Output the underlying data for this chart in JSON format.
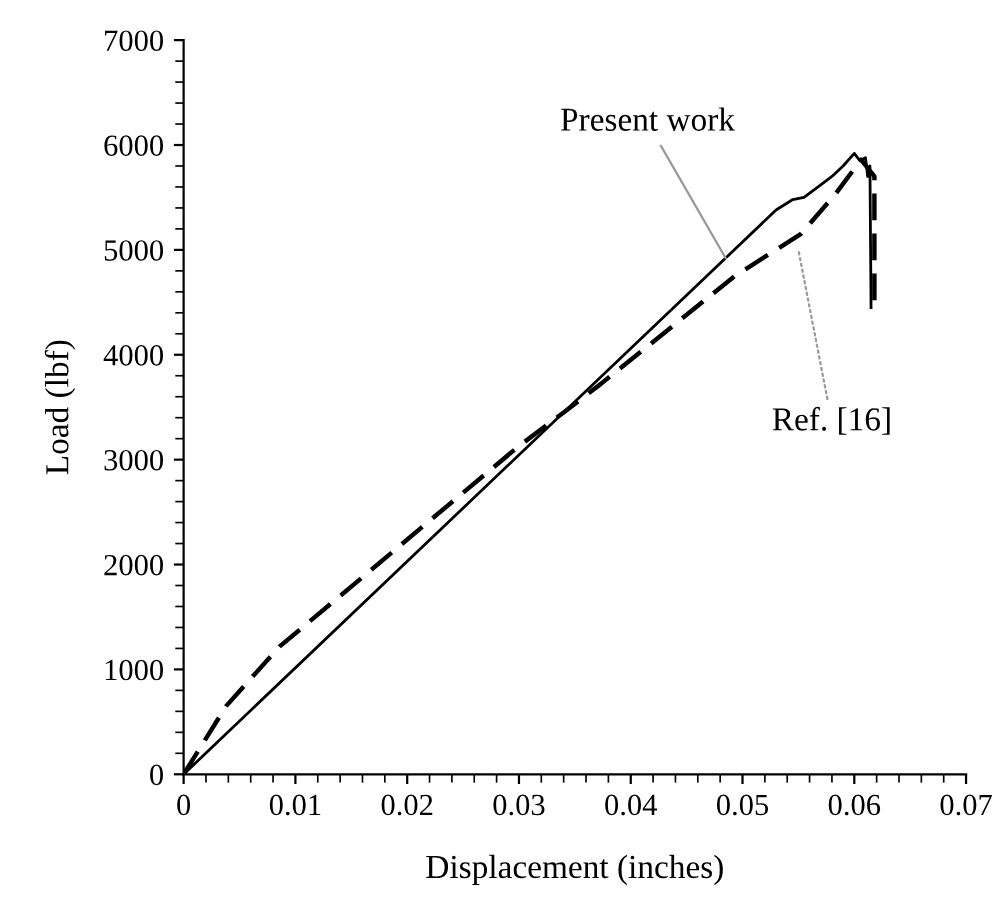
{
  "chart_data": {
    "type": "line",
    "xlabel": "Displacement (inches)",
    "ylabel": "Load (lbf)",
    "xlim": [
      0,
      0.07
    ],
    "ylim": [
      0,
      7000
    ],
    "xticks": [
      0,
      0.01,
      0.02,
      0.03,
      0.04,
      0.05,
      0.06,
      0.07
    ],
    "yticks": [
      0,
      1000,
      2000,
      3000,
      4000,
      5000,
      6000,
      7000
    ],
    "grid": false,
    "legend": false,
    "series": [
      {
        "color": "#000000",
        "line_style": "solid",
        "x": [
          0,
          0.053,
          0.0545,
          0.0555,
          0.057,
          0.058,
          0.059,
          0.06,
          0.0605,
          0.061,
          0.0612,
          0.0614,
          0.0615
        ],
        "values": [
          0,
          5380,
          5480,
          5500,
          5620,
          5700,
          5800,
          5920,
          5850,
          5880,
          5700,
          5800,
          4450
        ]
      },
      {
        "color": "#000000",
        "line_style": "dashed",
        "x": [
          0,
          0.0038,
          0.0086,
          0.014,
          0.0217,
          0.03,
          0.034,
          0.0373,
          0.0493,
          0.0552,
          0.0583,
          0.0606,
          0.0618,
          0.0618
        ],
        "values": [
          0,
          650,
          1220,
          1700,
          2390,
          3130,
          3450,
          3720,
          4750,
          5150,
          5530,
          5860,
          5700,
          4430
        ]
      }
    ],
    "annotations": [
      {
        "text": "Present work",
        "x": 0.0485,
        "y": 4920
      },
      {
        "text": "Ref. [16]",
        "x": 0.055,
        "y": 5000
      }
    ]
  }
}
